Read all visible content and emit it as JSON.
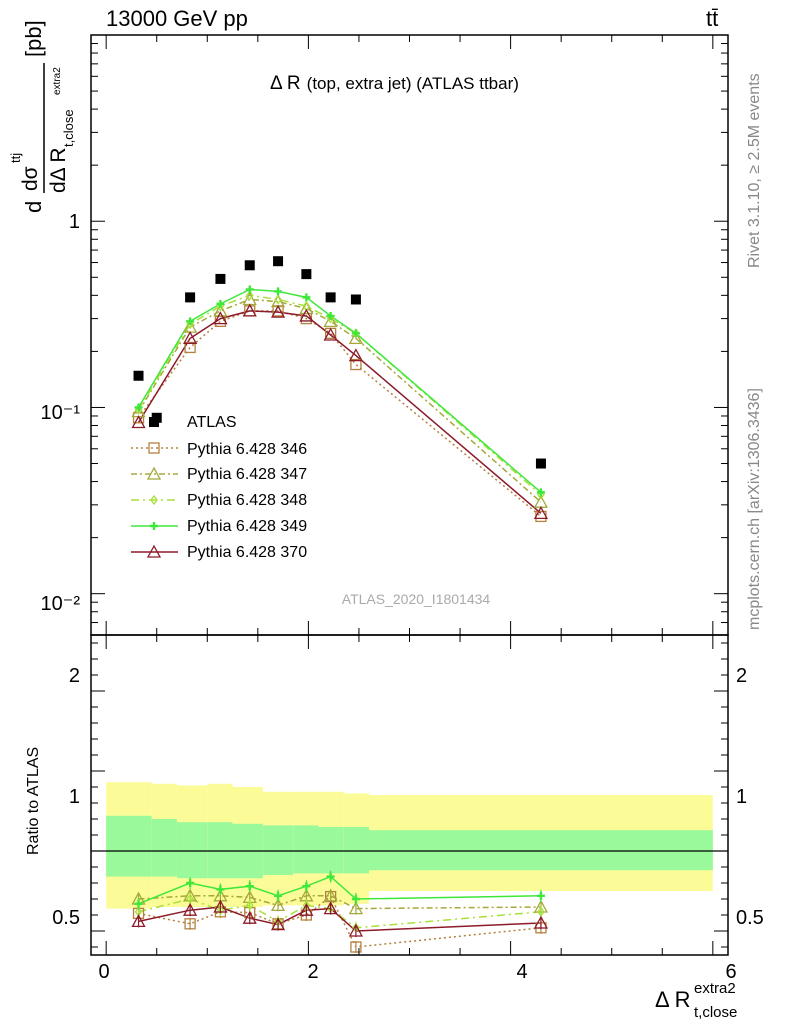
{
  "header": {
    "left": "13000 GeV pp",
    "right": "tt̄",
    "side_rivet": "Rivet 3.1.10, ≥ 2.5M events",
    "side_url": "mcplots.cern.ch [arXiv:1306.3436]"
  },
  "main_title": {
    "prefix": "Δ R",
    "rest": "(top, extra jet) (ATLAS ttbar)"
  },
  "watermark": "ATLAS_2020_I1801434",
  "upper_ylabel": {
    "d": "d",
    "dsigma": "dσ",
    "dsigma_sup": "ttj",
    "den": "dΔ R",
    "den_sub": "t,close",
    "den_sup": "extra2",
    "unit": "[pb]"
  },
  "ratio_ylabel": "Ratio to ATLAS",
  "xlabel": {
    "main": "Δ R",
    "sup": "extra2",
    "sub": "t,close"
  },
  "upper_ticks": [
    {
      "label": "1",
      "value": 1
    },
    {
      "label": "10⁻¹",
      "value": 0.1
    },
    {
      "label": "10⁻²",
      "value": 0.01
    }
  ],
  "ratio_ticks": [
    {
      "label": "2",
      "value": 2
    },
    {
      "label": "1",
      "value": 1
    },
    {
      "label": "0.5",
      "value": 0.5
    }
  ],
  "x_ticks": [
    {
      "label": "0",
      "value": 0
    },
    {
      "label": "2",
      "value": 2
    },
    {
      "label": "4",
      "value": 4
    },
    {
      "label": "6",
      "value": 6
    }
  ],
  "chart_data": {
    "type": "line",
    "title": "Δ R (top, extra jet) (ATLAS ttbar)",
    "xlabel": "Δ R t,close extra2",
    "ylabel": "dσ / dΔ R [pb]",
    "xlim": [
      -0.15,
      6.15
    ],
    "ylim_main": [
      0.006,
      10
    ],
    "y_scale_main": "log",
    "ylim_ratio": [
      0.35,
      2.35
    ],
    "grid": false,
    "legend_position": "lower-left",
    "bin_edges": [
      0,
      0.45,
      0.7,
      1.0,
      1.25,
      1.55,
      1.85,
      2.1,
      2.35,
      2.6,
      6.0
    ],
    "x": [
      0.32,
      0.83,
      1.13,
      1.42,
      1.7,
      1.98,
      2.22,
      2.47,
      4.3
    ],
    "atlas": {
      "name": "ATLAS",
      "color": "#000000",
      "x": [
        0.5,
        0.83,
        1.13,
        1.42,
        1.7,
        1.98,
        2.22,
        2.47,
        4.3
      ],
      "values": [
        0.088,
        0.39,
        0.49,
        0.58,
        0.61,
        0.52,
        0.39,
        0.38,
        0.05
      ],
      "extra_point": {
        "x": 0.32,
        "value": 0.148
      }
    },
    "series": [
      {
        "name": "Pythia 6.428 346",
        "color": "#b5803e",
        "marker": "square",
        "dash": "2,3",
        "values": [
          0.088,
          0.21,
          0.29,
          0.33,
          0.33,
          0.3,
          0.25,
          0.17,
          0.026
        ],
        "ratio": [
          0.61,
          0.545,
          0.62,
          0.615,
          0.545,
          0.6,
          0.715,
          0.4,
          0.52
        ]
      },
      {
        "name": "Pythia 6.428 347",
        "color": "#a5a83a",
        "marker": "triangle",
        "dash": "6,3,2,3",
        "values": [
          0.095,
          0.27,
          0.33,
          0.38,
          0.37,
          0.34,
          0.29,
          0.235,
          0.031
        ],
        "ratio": [
          0.7,
          0.72,
          0.72,
          0.71,
          0.66,
          0.72,
          0.72,
          0.64,
          0.65
        ]
      },
      {
        "name": "Pythia 6.428 348",
        "color": "#a8e03a",
        "marker": "diamond",
        "dash": "8,4,2,4",
        "values": [
          0.097,
          0.28,
          0.35,
          0.4,
          0.38,
          0.35,
          0.3,
          0.25,
          0.034
        ],
        "ratio": [
          0.62,
          0.7,
          0.63,
          0.66,
          0.56,
          0.66,
          0.64,
          0.52,
          0.62
        ]
      },
      {
        "name": "Pythia 6.428 349",
        "color": "#3ee83a",
        "marker": "cross",
        "dash": "",
        "values": [
          0.1,
          0.29,
          0.36,
          0.43,
          0.42,
          0.39,
          0.31,
          0.25,
          0.035
        ],
        "ratio": [
          0.67,
          0.8,
          0.76,
          0.78,
          0.72,
          0.78,
          0.84,
          0.7,
          0.72
        ]
      },
      {
        "name": "Pythia 6.428 370",
        "color": "#8b1a2a",
        "marker": "triangle",
        "dash": "",
        "values": [
          0.083,
          0.235,
          0.3,
          0.33,
          0.325,
          0.31,
          0.245,
          0.19,
          0.027
        ],
        "ratio": [
          0.56,
          0.63,
          0.65,
          0.58,
          0.54,
          0.63,
          0.64,
          0.5,
          0.55
        ]
      }
    ],
    "uncertainty_bands": {
      "inner_color": "#99f99b",
      "outer_color": "#fbfc98",
      "inner": [
        [
          0.84,
          1.22
        ],
        [
          0.84,
          1.2
        ],
        [
          0.83,
          1.18
        ],
        [
          0.83,
          1.18
        ],
        [
          0.83,
          1.17
        ],
        [
          0.85,
          1.16
        ],
        [
          0.86,
          1.16
        ],
        [
          0.86,
          1.15
        ],
        [
          0.86,
          1.15
        ],
        [
          0.88,
          1.13
        ]
      ],
      "outer": [
        [
          0.64,
          1.43
        ],
        [
          0.65,
          1.42
        ],
        [
          0.65,
          1.41
        ],
        [
          0.65,
          1.42
        ],
        [
          0.65,
          1.4
        ],
        [
          0.66,
          1.37
        ],
        [
          0.66,
          1.37
        ],
        [
          0.66,
          1.37
        ],
        [
          0.67,
          1.36
        ],
        [
          0.75,
          1.35
        ]
      ]
    }
  }
}
